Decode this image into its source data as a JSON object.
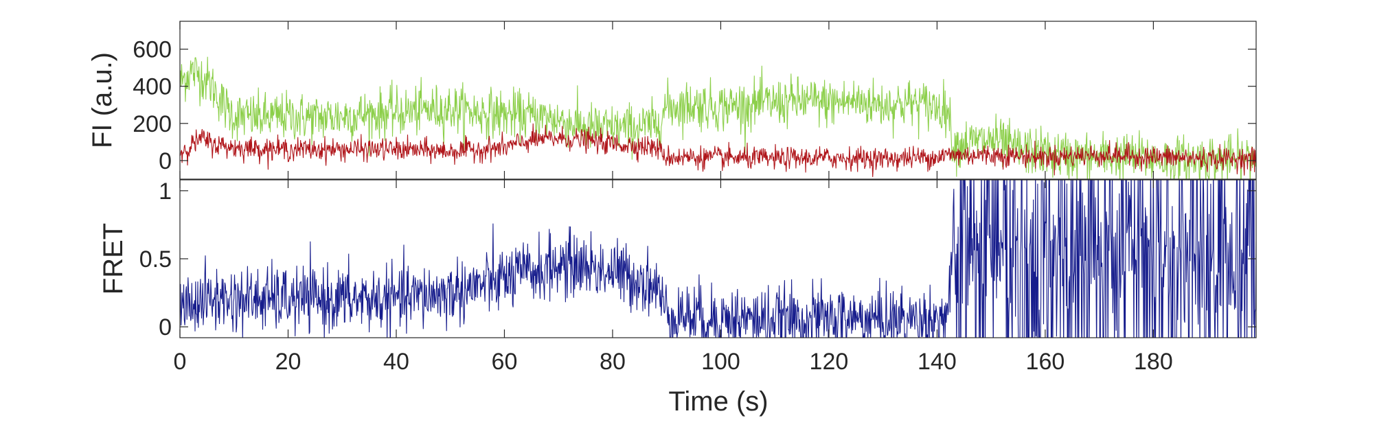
{
  "chart_data": [
    {
      "type": "line",
      "ylabel": "FI (a.u.)",
      "xlabel": "",
      "xlim": [
        0,
        199
      ],
      "ylim": [
        -100,
        750
      ],
      "yticks": [
        0,
        200,
        400,
        600
      ],
      "grid": false,
      "series": [
        {
          "color": "#8ccf4a",
          "x": [
            0,
            2,
            4,
            6,
            8,
            10,
            15,
            20,
            25,
            30,
            35,
            40,
            45,
            50,
            55,
            60,
            65,
            70,
            75,
            80,
            85,
            88,
            90,
            95,
            100,
            105,
            110,
            115,
            120,
            125,
            130,
            135,
            140,
            142,
            143,
            145,
            150,
            155,
            160,
            165,
            170,
            175,
            180,
            185,
            190,
            195,
            199
          ],
          "values": [
            420,
            480,
            460,
            400,
            300,
            240,
            230,
            240,
            230,
            240,
            250,
            260,
            270,
            280,
            260,
            250,
            240,
            220,
            180,
            170,
            180,
            190,
            290,
            300,
            290,
            300,
            310,
            320,
            310,
            320,
            300,
            310,
            290,
            280,
            80,
            90,
            110,
            60,
            40,
            20,
            20,
            20,
            10,
            0,
            10,
            0,
            20
          ],
          "noise": 65
        },
        {
          "color": "#b0151a",
          "x": [
            0,
            2,
            4,
            6,
            10,
            20,
            30,
            40,
            50,
            60,
            65,
            70,
            75,
            80,
            85,
            88,
            90,
            100,
            110,
            120,
            130,
            140,
            142,
            145,
            150,
            160,
            170,
            180,
            190,
            199
          ],
          "values": [
            40,
            80,
            120,
            90,
            70,
            60,
            60,
            60,
            50,
            70,
            110,
            120,
            110,
            90,
            80,
            70,
            20,
            15,
            10,
            15,
            10,
            20,
            30,
            30,
            30,
            20,
            30,
            20,
            10,
            10
          ],
          "noise": 30
        }
      ]
    },
    {
      "type": "line",
      "ylabel": "FRET",
      "xlabel": "Time (s)",
      "xlim": [
        0,
        199
      ],
      "ylim": [
        -0.08,
        1.08
      ],
      "yticks": [
        0,
        0.5,
        1
      ],
      "xticks": [
        0,
        20,
        40,
        60,
        80,
        100,
        120,
        140,
        160,
        180
      ],
      "grid": false,
      "series": [
        {
          "color": "#161c8c",
          "x": [
            0,
            5,
            10,
            20,
            30,
            40,
            50,
            55,
            60,
            65,
            70,
            75,
            80,
            85,
            88,
            90,
            95,
            100,
            110,
            120,
            130,
            140,
            142,
            143,
            145,
            150,
            155,
            160,
            170,
            180,
            190,
            199
          ],
          "values": [
            0.15,
            0.2,
            0.2,
            0.2,
            0.2,
            0.2,
            0.25,
            0.3,
            0.35,
            0.4,
            0.45,
            0.45,
            0.4,
            0.35,
            0.3,
            0.1,
            0.08,
            0.06,
            0.05,
            0.06,
            0.05,
            0.06,
            0.1,
            0.5,
            0.6,
            0.55,
            0.5,
            0.55,
            0.5,
            0.5,
            0.5,
            0.5
          ],
          "noise": 0.12,
          "volatile_after": 143
        }
      ]
    }
  ]
}
